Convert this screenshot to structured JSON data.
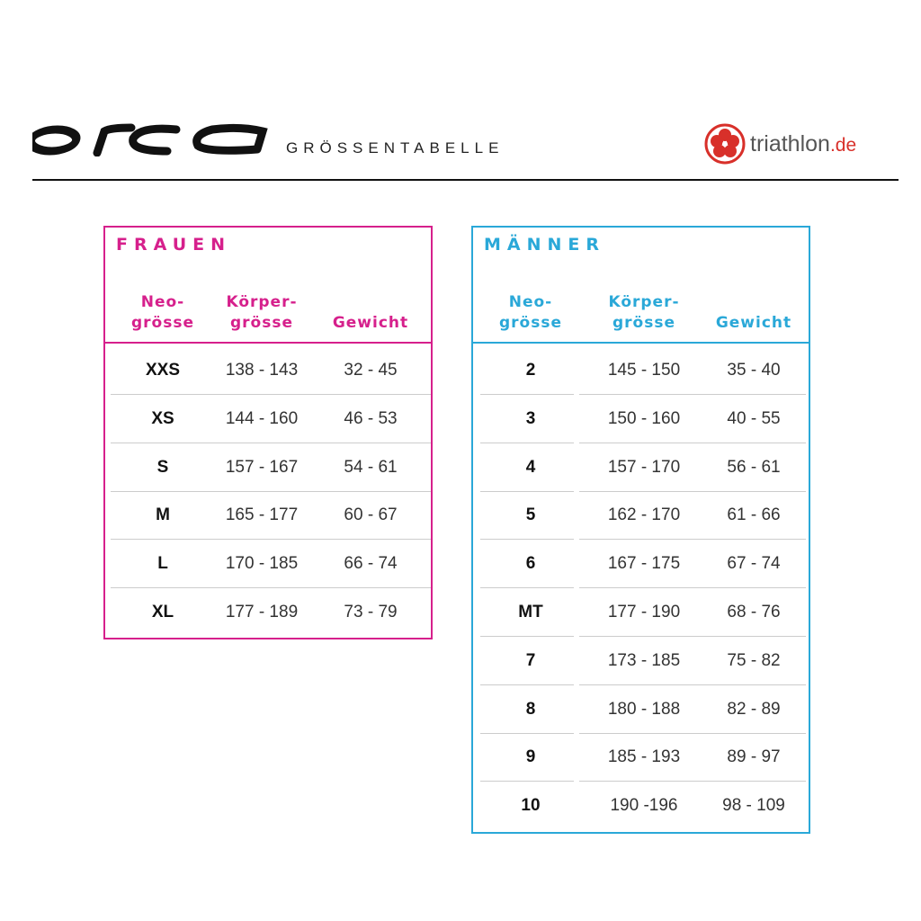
{
  "header": {
    "brand_logo": "orca",
    "title": "GRÖSSENTABELLE",
    "partner_logo": {
      "name": "triathlon",
      "suffix": ".de",
      "icon": "hibiscus-icon"
    }
  },
  "colors": {
    "frauen": "#d6208c",
    "maenner": "#2aa8d8",
    "partner_red": "#d8302a"
  },
  "frauen": {
    "title": "FRAUEN",
    "columns": [
      {
        "line1": "Neo-",
        "line2": "grösse"
      },
      {
        "line1": "Körper-",
        "line2": "grösse"
      },
      {
        "line1": "",
        "line2": "Gewicht"
      }
    ],
    "rows": [
      [
        "XXS",
        "138 - 143",
        "32 - 45"
      ],
      [
        "XS",
        "144 - 160",
        "46 - 53"
      ],
      [
        "S",
        "157 - 167",
        "54 - 61"
      ],
      [
        "M",
        "165 - 177",
        "60 - 67"
      ],
      [
        "L",
        "170 - 185",
        "66 - 74"
      ],
      [
        "XL",
        "177 - 189",
        "73 - 79"
      ]
    ]
  },
  "maenner": {
    "title": "MÄNNER",
    "columns": [
      {
        "line1": "Neo-",
        "line2": "grösse"
      },
      {
        "line1": "Körper-",
        "line2": "grösse"
      },
      {
        "line1": "",
        "line2": "Gewicht"
      }
    ],
    "rows": [
      [
        "2",
        "145 - 150",
        "35 - 40"
      ],
      [
        "3",
        "150 - 160",
        "40 - 55"
      ],
      [
        "4",
        "157 - 170",
        "56 - 61"
      ],
      [
        "5",
        "162 - 170",
        "61 - 66"
      ],
      [
        "6",
        "167 - 175",
        "67 - 74"
      ],
      [
        "MT",
        "177 - 190",
        "68 - 76"
      ],
      [
        "7",
        "173 - 185",
        "75 - 82"
      ],
      [
        "8",
        "180 - 188",
        "82 - 89"
      ],
      [
        "9",
        "185 - 193",
        "89 - 97"
      ],
      [
        "10",
        "190 -196",
        "98 - 109"
      ]
    ]
  }
}
